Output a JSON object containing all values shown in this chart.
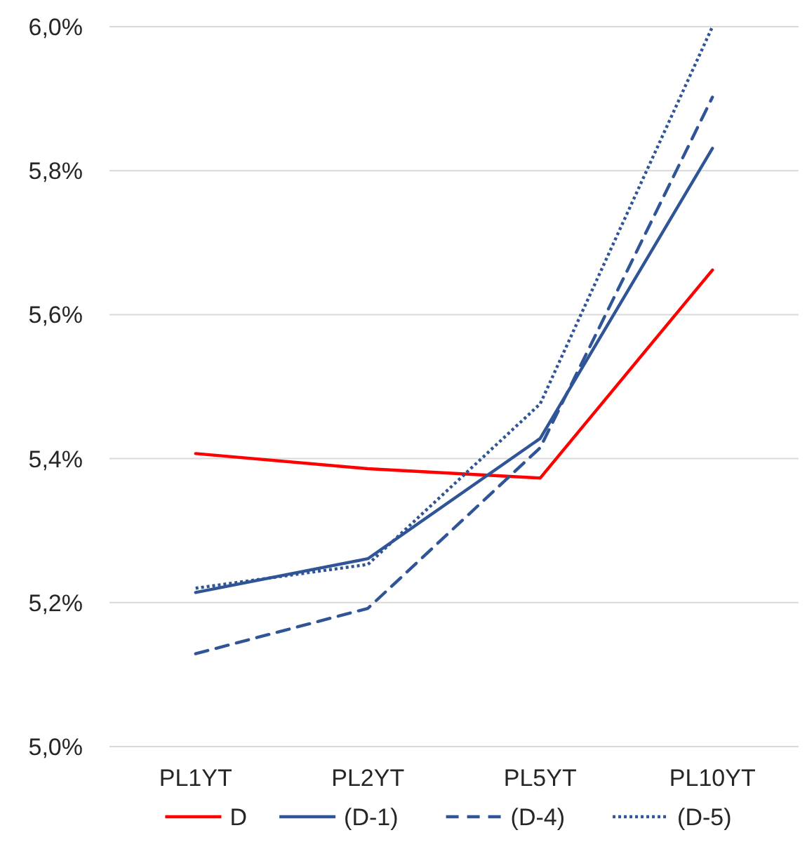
{
  "chart_data": {
    "type": "line",
    "categories": [
      "PL1YT",
      "PL2YT",
      "PL5YT",
      "PL10YT"
    ],
    "series": [
      {
        "name": "D",
        "color": "#ff0000",
        "line_style": "solid",
        "values": [
          5.407,
          5.386,
          5.373,
          5.662
        ]
      },
      {
        "name": "(D-1)",
        "color": "#2f5597",
        "line_style": "solid",
        "values": [
          5.214,
          5.261,
          5.428,
          5.831
        ]
      },
      {
        "name": "(D-4)",
        "color": "#2f5597",
        "line_style": "dashed",
        "values": [
          5.129,
          5.192,
          5.415,
          5.902
        ]
      },
      {
        "name": "(D-5)",
        "color": "#2f5597",
        "line_style": "dotted",
        "values": [
          5.22,
          5.253,
          5.476,
          6.0
        ]
      }
    ],
    "ylim": [
      5.0,
      6.0
    ],
    "yticks": [
      {
        "value": 5.0,
        "label": "5,0%"
      },
      {
        "value": 5.2,
        "label": "5,2%"
      },
      {
        "value": 5.4,
        "label": "5,4%"
      },
      {
        "value": 5.6,
        "label": "5,6%"
      },
      {
        "value": 5.8,
        "label": "5,8%"
      },
      {
        "value": 6.0,
        "label": "6,0%"
      }
    ],
    "grid": "y",
    "legend": "bottom",
    "marker": "none"
  }
}
